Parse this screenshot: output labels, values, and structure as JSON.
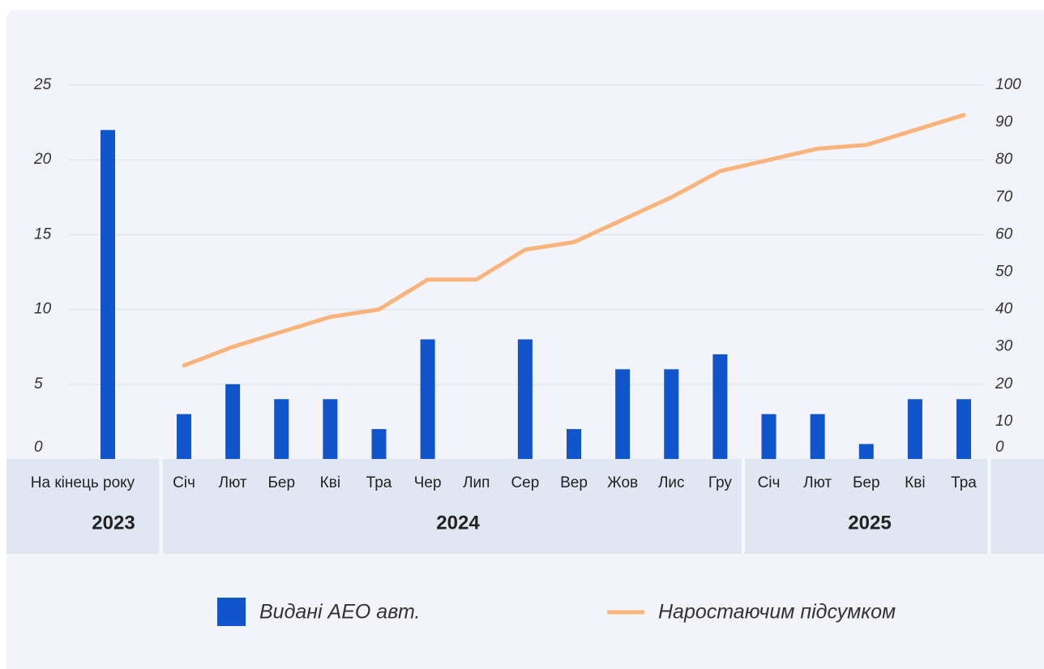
{
  "chart_data": {
    "type": "bar_line",
    "groups": [
      {
        "name": "2023",
        "categories": [
          "На кінець року"
        ]
      },
      {
        "name": "2024",
        "categories": [
          "Січ",
          "Лют",
          "Бер",
          "Кві",
          "Тра",
          "Чер",
          "Лип",
          "Сер",
          "Вер",
          "Жов",
          "Лис",
          "Гру"
        ]
      },
      {
        "name": "2025",
        "categories": [
          "Січ",
          "Лют",
          "Бер",
          "Кві",
          "Тра"
        ]
      }
    ],
    "series": [
      {
        "name": "Видані АЕО авт.",
        "type": "bar",
        "color": "#1155cc",
        "axis": "y",
        "values": [
          22,
          3,
          5,
          4,
          4,
          2,
          8,
          0,
          8,
          2,
          6,
          6,
          7,
          3,
          3,
          1,
          4,
          4
        ]
      },
      {
        "name": "Наростаючим підсумком",
        "type": "line",
        "color": "#f8b47a",
        "axis": "y2",
        "values": [
          null,
          25,
          30,
          34,
          38,
          40,
          48,
          48,
          56,
          58,
          64,
          70,
          77,
          80,
          83,
          84,
          88,
          92
        ]
      }
    ],
    "ylim": [
      0,
      25
    ],
    "yticks": [
      0,
      5,
      10,
      15,
      20,
      25
    ],
    "y2lim": [
      0,
      100
    ],
    "y2ticks": [
      0,
      10,
      20,
      30,
      40,
      50,
      60,
      70,
      80,
      90,
      100
    ],
    "grid": true
  }
}
